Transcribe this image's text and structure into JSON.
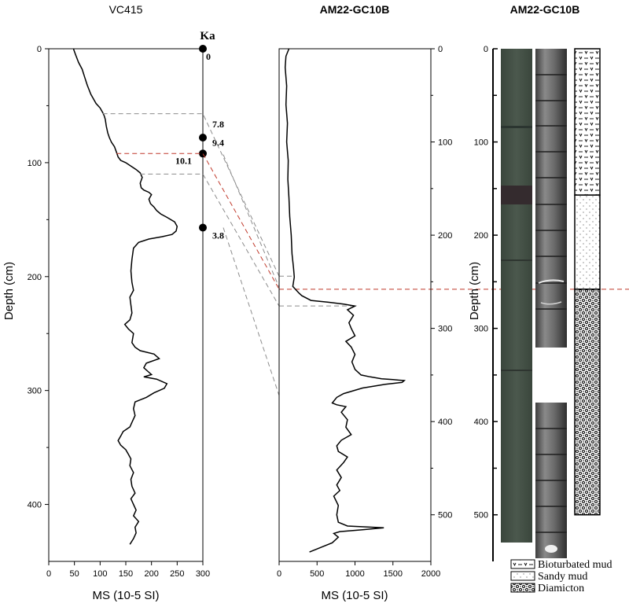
{
  "colors": {
    "correlation_grey": "#8c8c8c",
    "correlation_red": "#c0392b",
    "line": "#000000",
    "core_dark": "#3e4a40"
  },
  "chart_data": [
    {
      "type": "line",
      "title": "VC415",
      "xlabel": "MS (10-5 SI)",
      "ylabel": "Depth (cm)",
      "xlim": [
        0,
        300
      ],
      "ylim": [
        0,
        450
      ],
      "xticks": [
        "0",
        "50",
        "100",
        "150",
        "200",
        "250",
        "300"
      ],
      "yticks": [
        "0",
        "100",
        "200",
        "300",
        "400"
      ],
      "series": [
        {
          "points": [
            [
              48,
              0
            ],
            [
              52,
              5
            ],
            [
              58,
              12
            ],
            [
              65,
              18
            ],
            [
              70,
              25
            ],
            [
              75,
              32
            ],
            [
              82,
              40
            ],
            [
              92,
              48
            ],
            [
              100,
              52
            ],
            [
              105,
              56
            ],
            [
              108,
              59
            ],
            [
              110,
              62
            ],
            [
              112,
              68
            ],
            [
              115,
              74
            ],
            [
              118,
              78
            ],
            [
              122,
              82
            ],
            [
              128,
              86
            ],
            [
              132,
              91
            ],
            [
              135,
              95
            ],
            [
              140,
              98
            ],
            [
              150,
              100
            ],
            [
              160,
              103
            ],
            [
              170,
              106
            ],
            [
              178,
              109
            ],
            [
              182,
              113
            ],
            [
              178,
              118
            ],
            [
              180,
              122
            ],
            [
              185,
              124
            ],
            [
              195,
              126
            ],
            [
              200,
              128
            ],
            [
              195,
              132
            ],
            [
              198,
              136
            ],
            [
              205,
              139
            ],
            [
              210,
              142
            ],
            [
              218,
              145
            ],
            [
              230,
              148
            ],
            [
              245,
              152
            ],
            [
              250,
              156
            ],
            [
              248,
              160
            ],
            [
              240,
              163
            ],
            [
              220,
              165
            ],
            [
              195,
              167
            ],
            [
              175,
              170
            ],
            [
              165,
              175
            ],
            [
              162,
              185
            ],
            [
              160,
              195
            ],
            [
              162,
              205
            ],
            [
              165,
              212
            ],
            [
              158,
              218
            ],
            [
              160,
              225
            ],
            [
              162,
              232
            ],
            [
              158,
              238
            ],
            [
              148,
              242
            ],
            [
              155,
              246
            ],
            [
              165,
              250
            ],
            [
              162,
              258
            ],
            [
              168,
              262
            ],
            [
              178,
              265
            ],
            [
              205,
              268
            ],
            [
              215,
              272
            ],
            [
              190,
              276
            ],
            [
              185,
              280
            ],
            [
              195,
              284
            ],
            [
              200,
              286
            ],
            [
              185,
              288
            ],
            [
              210,
              290
            ],
            [
              230,
              294
            ],
            [
              225,
              298
            ],
            [
              205,
              302
            ],
            [
              190,
              306
            ],
            [
              168,
              310
            ],
            [
              165,
              316
            ],
            [
              168,
              322
            ],
            [
              162,
              328
            ],
            [
              158,
              332
            ],
            [
              145,
              336
            ],
            [
              140,
              340
            ],
            [
              135,
              344
            ],
            [
              140,
              348
            ],
            [
              150,
              352
            ],
            [
              155,
              356
            ],
            [
              160,
              360
            ],
            [
              158,
              366
            ],
            [
              165,
              372
            ],
            [
              160,
              378
            ],
            [
              162,
              384
            ],
            [
              168,
              390
            ],
            [
              160,
              395
            ],
            [
              165,
              400
            ],
            [
              170,
              405
            ],
            [
              165,
              410
            ],
            [
              175,
              415
            ],
            [
              168,
              420
            ],
            [
              170,
              425
            ],
            [
              165,
              430
            ],
            [
              158,
              435
            ]
          ]
        }
      ],
      "annotation_label": "Ka",
      "age_markers": [
        {
          "depth": 0,
          "label": "0"
        },
        {
          "depth": 78,
          "label": "7.8"
        },
        {
          "depth": 92,
          "label": "9.4"
        },
        {
          "depth": 92,
          "label": "10.1"
        },
        {
          "depth": 157,
          "label": "3.8"
        }
      ]
    },
    {
      "type": "line",
      "title": "AM22-GC10B",
      "xlabel": "MS (10-5 SI)",
      "ylabel": "Depth (cm)",
      "xlim": [
        0,
        2000
      ],
      "ylim": [
        0,
        550
      ],
      "xticks": [
        "0",
        "500",
        "1000",
        "1500",
        "2000"
      ],
      "yticks": [
        "0",
        "100",
        "200",
        "300",
        "400",
        "500"
      ],
      "series": [
        {
          "points": [
            [
              130,
              0
            ],
            [
              90,
              8
            ],
            [
              80,
              20
            ],
            [
              100,
              40
            ],
            [
              90,
              60
            ],
            [
              110,
              80
            ],
            [
              100,
              100
            ],
            [
              120,
              120
            ],
            [
              115,
              140
            ],
            [
              130,
              160
            ],
            [
              140,
              180
            ],
            [
              160,
              200
            ],
            [
              170,
              220
            ],
            [
              190,
              235
            ],
            [
              200,
              245
            ],
            [
              180,
              255
            ],
            [
              260,
              262
            ],
            [
              300,
              265
            ],
            [
              420,
              270
            ],
            [
              650,
              272
            ],
            [
              850,
              274
            ],
            [
              1000,
              276
            ],
            [
              900,
              280
            ],
            [
              980,
              286
            ],
            [
              920,
              294
            ],
            [
              950,
              300
            ],
            [
              1000,
              308
            ],
            [
              880,
              314
            ],
            [
              950,
              320
            ],
            [
              1000,
              328
            ],
            [
              960,
              336
            ],
            [
              1000,
              344
            ],
            [
              1080,
              350
            ],
            [
              1200,
              352
            ],
            [
              1350,
              354
            ],
            [
              1500,
              355
            ],
            [
              1650,
              356
            ],
            [
              1620,
              358
            ],
            [
              1400,
              360
            ],
            [
              1250,
              362
            ],
            [
              1100,
              364
            ],
            [
              850,
              370
            ],
            [
              760,
              374
            ],
            [
              700,
              380
            ],
            [
              760,
              382
            ],
            [
              880,
              384
            ],
            [
              820,
              390
            ],
            [
              900,
              398
            ],
            [
              880,
              406
            ],
            [
              950,
              414
            ],
            [
              820,
              420
            ],
            [
              760,
              426
            ],
            [
              780,
              432
            ],
            [
              900,
              438
            ],
            [
              850,
              444
            ],
            [
              760,
              452
            ],
            [
              820,
              460
            ],
            [
              760,
              468
            ],
            [
              800,
              474
            ],
            [
              720,
              480
            ],
            [
              780,
              490
            ],
            [
              760,
              500
            ],
            [
              780,
              508
            ],
            [
              900,
              512
            ],
            [
              1380,
              514
            ],
            [
              1100,
              516
            ],
            [
              800,
              518
            ],
            [
              720,
              520
            ],
            [
              780,
              524
            ],
            [
              700,
              530
            ],
            [
              550,
              535
            ],
            [
              400,
              540
            ]
          ]
        }
      ]
    },
    {
      "type": "table",
      "title": "AM22-GC10B",
      "ylabel": "Depth (cm)",
      "ylim": [
        0,
        550
      ],
      "yticks": [
        "0",
        "100",
        "200",
        "300",
        "400",
        "500"
      ],
      "units": [
        {
          "name": "Bioturbated mud",
          "top": 0,
          "bottom": 157
        },
        {
          "name": "Sandy mud",
          "top": 157,
          "bottom": 258
        },
        {
          "name": "Diamicton",
          "top": 258,
          "bottom": 500
        }
      ],
      "legend": [
        "Bioturbated mud",
        "Sandy mud",
        "Diamicton"
      ]
    }
  ]
}
